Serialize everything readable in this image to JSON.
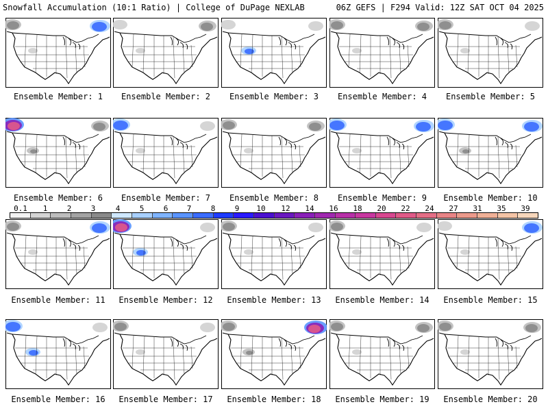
{
  "header": {
    "left": "Snowfall Accumulation (10:1 Ratio) | College of DuPage NEXLAB",
    "right": "06Z GEFS | F294 Valid: 12Z SAT OCT 04 2025"
  },
  "members": [
    {
      "label": "Ensemble Member: 1",
      "blobs": [
        [
          "nw",
          2
        ],
        [
          "ne",
          3
        ],
        [
          "rk",
          1
        ]
      ]
    },
    {
      "label": "Ensemble Member: 2",
      "blobs": [
        [
          "nw",
          1
        ],
        [
          "ne",
          2
        ],
        [
          "rk",
          1
        ]
      ]
    },
    {
      "label": "Ensemble Member: 3",
      "blobs": [
        [
          "nw",
          1
        ],
        [
          "ne",
          1
        ],
        [
          "rk",
          3
        ]
      ]
    },
    {
      "label": "Ensemble Member: 4",
      "blobs": [
        [
          "nw",
          2
        ],
        [
          "ne",
          2
        ],
        [
          "rk",
          1
        ]
      ]
    },
    {
      "label": "Ensemble Member: 5",
      "blobs": [
        [
          "nw",
          2
        ],
        [
          "ne",
          1
        ],
        [
          "rk",
          1
        ]
      ]
    },
    {
      "label": "Ensemble Member: 6",
      "blobs": [
        [
          "nw",
          4
        ],
        [
          "ne",
          2
        ],
        [
          "rk",
          2
        ]
      ]
    },
    {
      "label": "Ensemble Member: 7",
      "blobs": [
        [
          "nw",
          3
        ],
        [
          "ne",
          1
        ],
        [
          "rk",
          1
        ]
      ]
    },
    {
      "label": "Ensemble Member: 8",
      "blobs": [
        [
          "nw",
          2
        ],
        [
          "ne",
          2
        ],
        [
          "rk",
          1
        ]
      ]
    },
    {
      "label": "Ensemble Member: 9",
      "blobs": [
        [
          "nw",
          3
        ],
        [
          "ne",
          3
        ],
        [
          "rk",
          1
        ]
      ]
    },
    {
      "label": "Ensemble Member: 10",
      "blobs": [
        [
          "nw",
          3
        ],
        [
          "ne",
          3
        ],
        [
          "rk",
          2
        ]
      ]
    },
    {
      "label": "Ensemble Member: 11",
      "blobs": [
        [
          "nw",
          2
        ],
        [
          "ne",
          3
        ],
        [
          "rk",
          1
        ]
      ]
    },
    {
      "label": "Ensemble Member: 12",
      "blobs": [
        [
          "nw",
          4
        ],
        [
          "ne",
          1
        ],
        [
          "rk",
          3
        ]
      ]
    },
    {
      "label": "Ensemble Member: 13",
      "blobs": [
        [
          "nw",
          2
        ],
        [
          "ne",
          1
        ],
        [
          "rk",
          1
        ]
      ]
    },
    {
      "label": "Ensemble Member: 14",
      "blobs": [
        [
          "nw",
          2
        ],
        [
          "ne",
          1
        ],
        [
          "rk",
          1
        ]
      ]
    },
    {
      "label": "Ensemble Member: 15",
      "blobs": [
        [
          "nw",
          1
        ],
        [
          "ne",
          3
        ],
        [
          "rk",
          1
        ]
      ]
    },
    {
      "label": "Ensemble Member: 16",
      "blobs": [
        [
          "nw",
          3
        ],
        [
          "ne",
          1
        ],
        [
          "rk",
          3
        ]
      ]
    },
    {
      "label": "Ensemble Member: 17",
      "blobs": [
        [
          "nw",
          2
        ],
        [
          "ne",
          1
        ],
        [
          "rk",
          1
        ]
      ]
    },
    {
      "label": "Ensemble Member: 18",
      "blobs": [
        [
          "nw",
          2
        ],
        [
          "ne",
          4
        ],
        [
          "rk",
          2
        ]
      ]
    },
    {
      "label": "Ensemble Member: 19",
      "blobs": [
        [
          "nw",
          2
        ],
        [
          "ne",
          2
        ],
        [
          "rk",
          1
        ]
      ]
    },
    {
      "label": "Ensemble Member: 20",
      "blobs": [
        [
          "nw",
          2
        ],
        [
          "ne",
          2
        ],
        [
          "rk",
          1
        ]
      ]
    }
  ],
  "legend": {
    "labels": [
      "0.1",
      "1",
      "2",
      "3",
      "4",
      "5",
      "6",
      "7",
      "8",
      "9",
      "10",
      "12",
      "14",
      "16",
      "18",
      "20",
      "22",
      "24",
      "27",
      "31",
      "35",
      "39"
    ],
    "colors": [
      "#f2f2f2",
      "#d6d6d6",
      "#bdbdbd",
      "#a3a3a3",
      "#8a8a8a",
      "#cfe8ff",
      "#a8d0ff",
      "#7fb4ff",
      "#5a94ff",
      "#3a6cff",
      "#1e3cff",
      "#2a1aff",
      "#4a10d0",
      "#6a18c0",
      "#8a20b8",
      "#a028b0",
      "#b830a8",
      "#c838a0",
      "#d84890",
      "#e05a88",
      "#e46e86",
      "#e88486",
      "#ec9a8c",
      "#f0b096",
      "#f4c4a6",
      "#f8d8bc"
    ]
  }
}
